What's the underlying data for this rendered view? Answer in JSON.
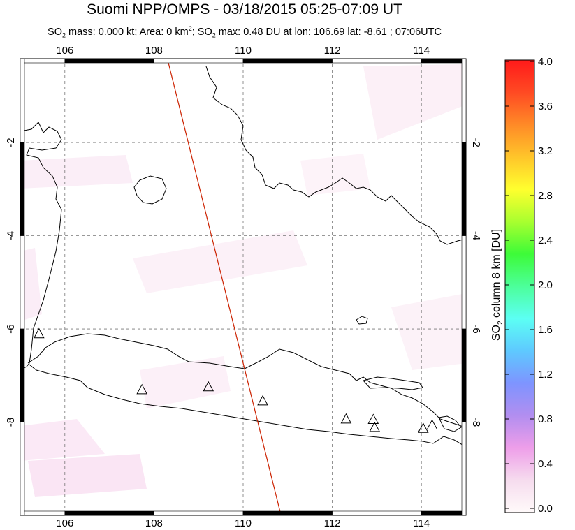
{
  "title": "Suomi NPP/OMPS - 03/18/2015 05:25-07:09 UT",
  "subtitle": {
    "mass_prefix": "SO",
    "mass_sub": "2",
    "mass_text": " mass: 0.000 kt; Area: 0 km",
    "area_sup": "2",
    "max_prefix": "; SO",
    "max_sub": "2",
    "max_text": " max: 0.48 DU at lon: 106.69 lat: -8.61 ; 07:06UTC"
  },
  "map": {
    "lon_ticks": [
      {
        "value": 106,
        "label": "106"
      },
      {
        "value": 108,
        "label": "108"
      },
      {
        "value": 110,
        "label": "110"
      },
      {
        "value": 112,
        "label": "112"
      },
      {
        "value": 114,
        "label": "114"
      }
    ],
    "lat_ticks": [
      {
        "value": -2,
        "label": "-2"
      },
      {
        "value": -4,
        "label": "-4"
      },
      {
        "value": -6,
        "label": "-6"
      },
      {
        "value": -8,
        "label": "-8"
      }
    ],
    "lon_range": [
      105,
      115
    ],
    "lat_range": [
      -10,
      -0.2
    ],
    "volcanoes": [
      {
        "lon": 105.42,
        "lat": -6.1
      },
      {
        "lon": 107.73,
        "lat": -7.3
      },
      {
        "lon": 109.22,
        "lat": -7.24
      },
      {
        "lon": 110.44,
        "lat": -7.54
      },
      {
        "lon": 112.31,
        "lat": -7.93
      },
      {
        "lon": 112.92,
        "lat": -7.94
      },
      {
        "lon": 112.95,
        "lat": -8.11
      },
      {
        "lon": 114.04,
        "lat": -8.13
      },
      {
        "lon": 114.24,
        "lat": -8.06
      }
    ],
    "orbit_track": [
      {
        "lon": 108.3,
        "lat": -0.2
      },
      {
        "lon": 110.85,
        "lat": -10.0
      }
    ],
    "track_color": "#cc2200"
  },
  "colorbar": {
    "ticks": [
      "4.0",
      "3.6",
      "3.2",
      "2.8",
      "2.4",
      "2.0",
      "1.6",
      "1.2",
      "0.8",
      "0.4",
      "0.0"
    ],
    "min": 0.0,
    "max": 4.0,
    "label_prefix": "SO",
    "label_sub": "2",
    "label_text": " column 8 km [DU]",
    "colors": [
      "#fffafa",
      "#f6dcee",
      "#ee9ee9",
      "#b28ef0",
      "#7e94ff",
      "#5ec9ff",
      "#5cfff4",
      "#4cff9a",
      "#3dfb38",
      "#a9ff2f",
      "#ffff2e",
      "#ffc52a",
      "#ff8a27",
      "#ff4a23",
      "#ff1a1a"
    ]
  }
}
